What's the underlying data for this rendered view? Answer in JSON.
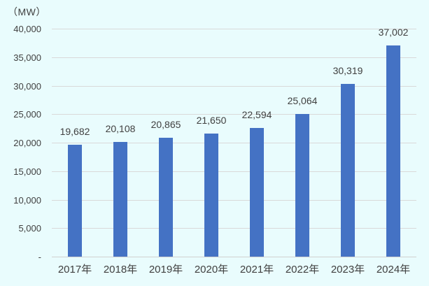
{
  "chart_data": {
    "type": "bar",
    "title": "",
    "unit_label": "（MW）",
    "categories": [
      "2017年",
      "2018年",
      "2019年",
      "2020年",
      "2021年",
      "2022年",
      "2023年",
      "2024年"
    ],
    "values": [
      19682,
      20108,
      20865,
      21650,
      22594,
      25064,
      30319,
      37002
    ],
    "value_labels": [
      "19,682",
      "20,108",
      "20,865",
      "21,650",
      "22,594",
      "25,064",
      "30,319",
      "37,002"
    ],
    "xlabel": "",
    "ylabel": "（MW）",
    "ylim": [
      0,
      40000
    ],
    "ytick_step": 5000,
    "ytick_labels": [
      "-",
      "5,000",
      "10,000",
      "15,000",
      "20,000",
      "25,000",
      "30,000",
      "35,000",
      "40,000"
    ],
    "grid": true,
    "legend": "none",
    "colors": {
      "bar": "#4472C4",
      "background": "#E9FCFD",
      "gridline": "#D9D9D9",
      "axis_line": "#D0D0D0",
      "text": "#404040"
    }
  }
}
